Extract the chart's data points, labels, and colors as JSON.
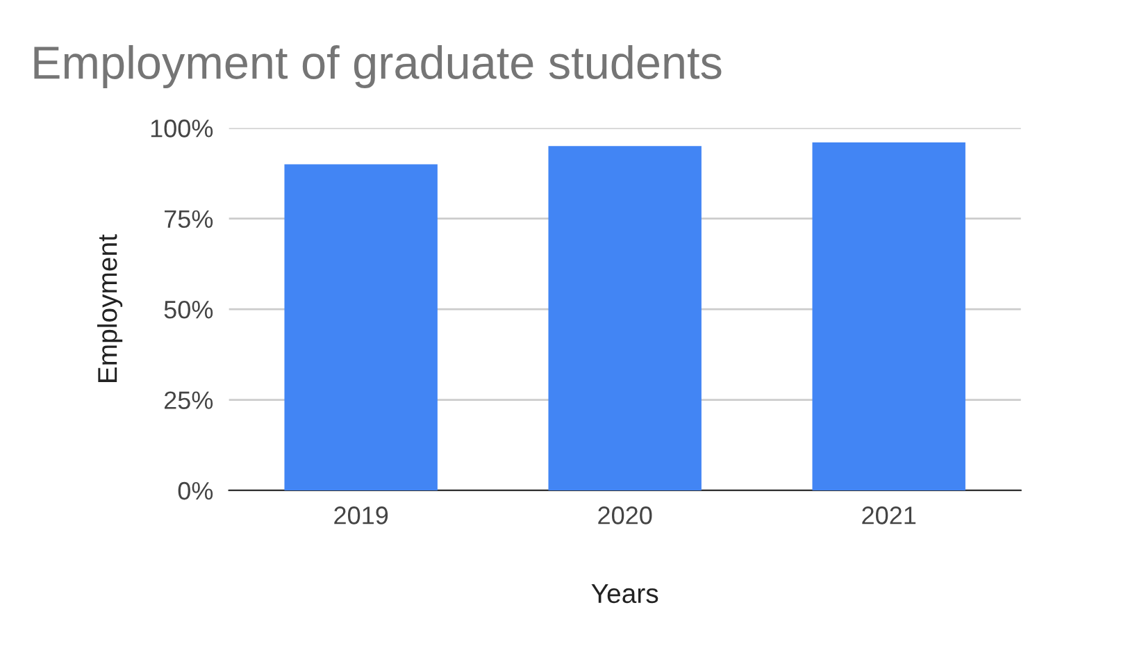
{
  "chart_data": {
    "type": "bar",
    "title": "Employment of graduate students",
    "xlabel": "Years",
    "ylabel": "Employment",
    "categories": [
      "2019",
      "2020",
      "2021"
    ],
    "values": [
      90,
      95,
      96
    ],
    "color": "#4285f4",
    "ylim": [
      0,
      100
    ],
    "yticks": [
      {
        "value": 0,
        "label": "0%"
      },
      {
        "value": 25,
        "label": "25%"
      },
      {
        "value": 50,
        "label": "50%"
      },
      {
        "value": 75,
        "label": "75%"
      },
      {
        "value": 100,
        "label": "100%"
      }
    ],
    "grid": "y",
    "legend": false
  }
}
